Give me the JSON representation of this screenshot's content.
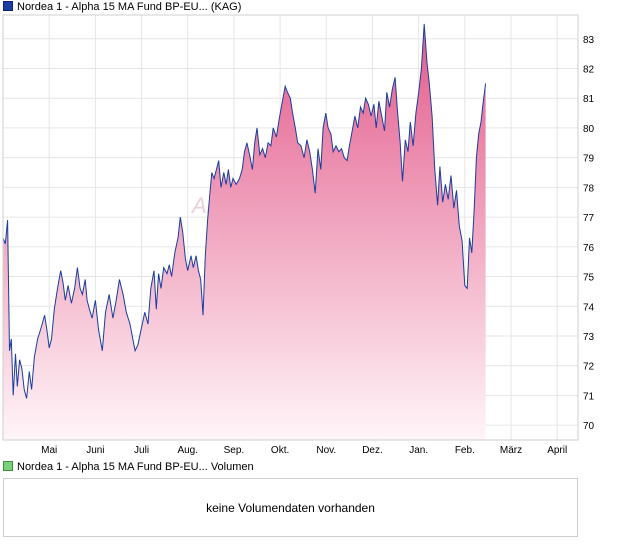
{
  "chart_data": {
    "type": "area",
    "legend": "Nordea 1 - Alpha 15 MA Fund BP-EU... (KAG)",
    "watermark": "Akt",
    "x_ticks": [
      "Mai",
      "Juni",
      "Juli",
      "Aug.",
      "Sep.",
      "Okt.",
      "Nov.",
      "Dez.",
      "Jan.",
      "Feb.",
      "März",
      "April"
    ],
    "ylim": [
      69.5,
      83.8
    ],
    "y_ticks": [
      70,
      71,
      72,
      73,
      74,
      75,
      76,
      77,
      78,
      79,
      80,
      81,
      82,
      83
    ],
    "grid": true,
    "colors": {
      "line": "#1a3d9e",
      "fill_top": "#e35b8b",
      "fill_bottom": "#fff5f8"
    },
    "x_range": [
      0,
      12.45
    ],
    "series": [
      {
        "values": [
          [
            0.0,
            76.3
          ],
          [
            0.05,
            76.1
          ],
          [
            0.1,
            76.9
          ],
          [
            0.14,
            72.5
          ],
          [
            0.18,
            72.9
          ],
          [
            0.22,
            71.0
          ],
          [
            0.27,
            72.4
          ],
          [
            0.31,
            71.3
          ],
          [
            0.36,
            72.2
          ],
          [
            0.41,
            71.9
          ],
          [
            0.46,
            71.2
          ],
          [
            0.51,
            70.9
          ],
          [
            0.57,
            71.8
          ],
          [
            0.62,
            71.2
          ],
          [
            0.68,
            72.3
          ],
          [
            0.75,
            72.9
          ],
          [
            0.83,
            73.3
          ],
          [
            0.9,
            73.7
          ],
          [
            0.95,
            73.2
          ],
          [
            1.0,
            72.6
          ],
          [
            1.05,
            72.9
          ],
          [
            1.11,
            73.9
          ],
          [
            1.18,
            74.6
          ],
          [
            1.25,
            75.2
          ],
          [
            1.3,
            74.8
          ],
          [
            1.35,
            74.2
          ],
          [
            1.41,
            74.7
          ],
          [
            1.48,
            74.1
          ],
          [
            1.55,
            74.6
          ],
          [
            1.61,
            75.3
          ],
          [
            1.67,
            74.6
          ],
          [
            1.72,
            74.4
          ],
          [
            1.78,
            74.9
          ],
          [
            1.82,
            74.2
          ],
          [
            1.87,
            73.9
          ],
          [
            1.93,
            73.6
          ],
          [
            2.0,
            74.2
          ],
          [
            2.07,
            73.2
          ],
          [
            2.15,
            72.5
          ],
          [
            2.22,
            73.8
          ],
          [
            2.3,
            74.4
          ],
          [
            2.38,
            73.6
          ],
          [
            2.45,
            74.2
          ],
          [
            2.52,
            74.9
          ],
          [
            2.6,
            74.4
          ],
          [
            2.67,
            73.8
          ],
          [
            2.75,
            73.4
          ],
          [
            2.81,
            72.9
          ],
          [
            2.86,
            72.5
          ],
          [
            2.92,
            72.7
          ],
          [
            3.0,
            73.3
          ],
          [
            3.07,
            73.8
          ],
          [
            3.14,
            73.4
          ],
          [
            3.2,
            74.6
          ],
          [
            3.27,
            75.2
          ],
          [
            3.32,
            73.9
          ],
          [
            3.37,
            75.1
          ],
          [
            3.42,
            74.6
          ],
          [
            3.48,
            75.3
          ],
          [
            3.55,
            75.1
          ],
          [
            3.6,
            75.4
          ],
          [
            3.65,
            75.0
          ],
          [
            3.72,
            75.8
          ],
          [
            3.79,
            76.3
          ],
          [
            3.84,
            77.0
          ],
          [
            3.89,
            76.5
          ],
          [
            3.95,
            75.6
          ],
          [
            4.0,
            75.2
          ],
          [
            4.07,
            75.7
          ],
          [
            4.12,
            75.3
          ],
          [
            4.18,
            75.7
          ],
          [
            4.23,
            75.2
          ],
          [
            4.28,
            74.9
          ],
          [
            4.33,
            73.7
          ],
          [
            4.38,
            75.7
          ],
          [
            4.43,
            76.9
          ],
          [
            4.48,
            77.8
          ],
          [
            4.52,
            78.5
          ],
          [
            4.57,
            78.3
          ],
          [
            4.62,
            78.6
          ],
          [
            4.67,
            78.9
          ],
          [
            4.72,
            78.0
          ],
          [
            4.78,
            78.5
          ],
          [
            4.83,
            78.1
          ],
          [
            4.88,
            78.6
          ],
          [
            4.93,
            78.0
          ],
          [
            4.98,
            78.3
          ],
          [
            5.05,
            78.1
          ],
          [
            5.12,
            78.3
          ],
          [
            5.18,
            78.6
          ],
          [
            5.23,
            79.2
          ],
          [
            5.28,
            79.5
          ],
          [
            5.34,
            79.1
          ],
          [
            5.4,
            78.6
          ],
          [
            5.45,
            79.5
          ],
          [
            5.5,
            80.0
          ],
          [
            5.56,
            79.1
          ],
          [
            5.62,
            79.3
          ],
          [
            5.68,
            79.0
          ],
          [
            5.74,
            79.5
          ],
          [
            5.8,
            79.4
          ],
          [
            5.85,
            80.0
          ],
          [
            5.92,
            79.7
          ],
          [
            5.98,
            80.3
          ],
          [
            6.05,
            80.9
          ],
          [
            6.11,
            81.4
          ],
          [
            6.16,
            81.2
          ],
          [
            6.22,
            81.0
          ],
          [
            6.27,
            80.5
          ],
          [
            6.33,
            80.0
          ],
          [
            6.38,
            79.5
          ],
          [
            6.45,
            79.4
          ],
          [
            6.52,
            79.0
          ],
          [
            6.58,
            79.6
          ],
          [
            6.64,
            79.2
          ],
          [
            6.7,
            78.6
          ],
          [
            6.76,
            77.8
          ],
          [
            6.82,
            79.3
          ],
          [
            6.88,
            78.6
          ],
          [
            6.93,
            80.0
          ],
          [
            6.99,
            80.5
          ],
          [
            7.04,
            80.0
          ],
          [
            7.1,
            79.8
          ],
          [
            7.15,
            79.2
          ],
          [
            7.21,
            79.4
          ],
          [
            7.27,
            79.2
          ],
          [
            7.33,
            79.3
          ],
          [
            7.39,
            79.0
          ],
          [
            7.45,
            78.9
          ],
          [
            7.5,
            79.4
          ],
          [
            7.56,
            79.9
          ],
          [
            7.62,
            80.4
          ],
          [
            7.68,
            80.0
          ],
          [
            7.74,
            80.7
          ],
          [
            7.8,
            80.5
          ],
          [
            7.85,
            81.0
          ],
          [
            7.91,
            80.8
          ],
          [
            7.97,
            80.4
          ],
          [
            8.03,
            80.8
          ],
          [
            8.08,
            80.0
          ],
          [
            8.14,
            80.9
          ],
          [
            8.2,
            80.4
          ],
          [
            8.26,
            79.9
          ],
          [
            8.31,
            81.2
          ],
          [
            8.37,
            80.7
          ],
          [
            8.43,
            81.3
          ],
          [
            8.49,
            81.7
          ],
          [
            8.54,
            80.6
          ],
          [
            8.6,
            79.5
          ],
          [
            8.65,
            78.2
          ],
          [
            8.71,
            79.6
          ],
          [
            8.77,
            79.2
          ],
          [
            8.82,
            80.2
          ],
          [
            8.88,
            79.4
          ],
          [
            8.94,
            80.5
          ],
          [
            9.0,
            81.2
          ],
          [
            9.06,
            82.0
          ],
          [
            9.12,
            83.5
          ],
          [
            9.18,
            82.2
          ],
          [
            9.23,
            81.5
          ],
          [
            9.29,
            80.4
          ],
          [
            9.35,
            78.6
          ],
          [
            9.41,
            77.4
          ],
          [
            9.46,
            78.7
          ],
          [
            9.52,
            77.5
          ],
          [
            9.58,
            78.1
          ],
          [
            9.64,
            77.6
          ],
          [
            9.7,
            78.4
          ],
          [
            9.76,
            77.3
          ],
          [
            9.82,
            77.9
          ],
          [
            9.88,
            76.7
          ],
          [
            9.94,
            76.2
          ],
          [
            10.0,
            74.7
          ],
          [
            10.05,
            74.6
          ],
          [
            10.1,
            76.3
          ],
          [
            10.15,
            75.8
          ],
          [
            10.2,
            77.2
          ],
          [
            10.25,
            79.0
          ],
          [
            10.3,
            79.8
          ],
          [
            10.35,
            80.2
          ],
          [
            10.4,
            80.9
          ],
          [
            10.45,
            81.5
          ]
        ]
      }
    ]
  },
  "volume": {
    "legend": "Nordea 1 - Alpha 15 MA Fund BP-EU... Volumen",
    "empty_message": "keine Volumendaten vorhanden"
  }
}
